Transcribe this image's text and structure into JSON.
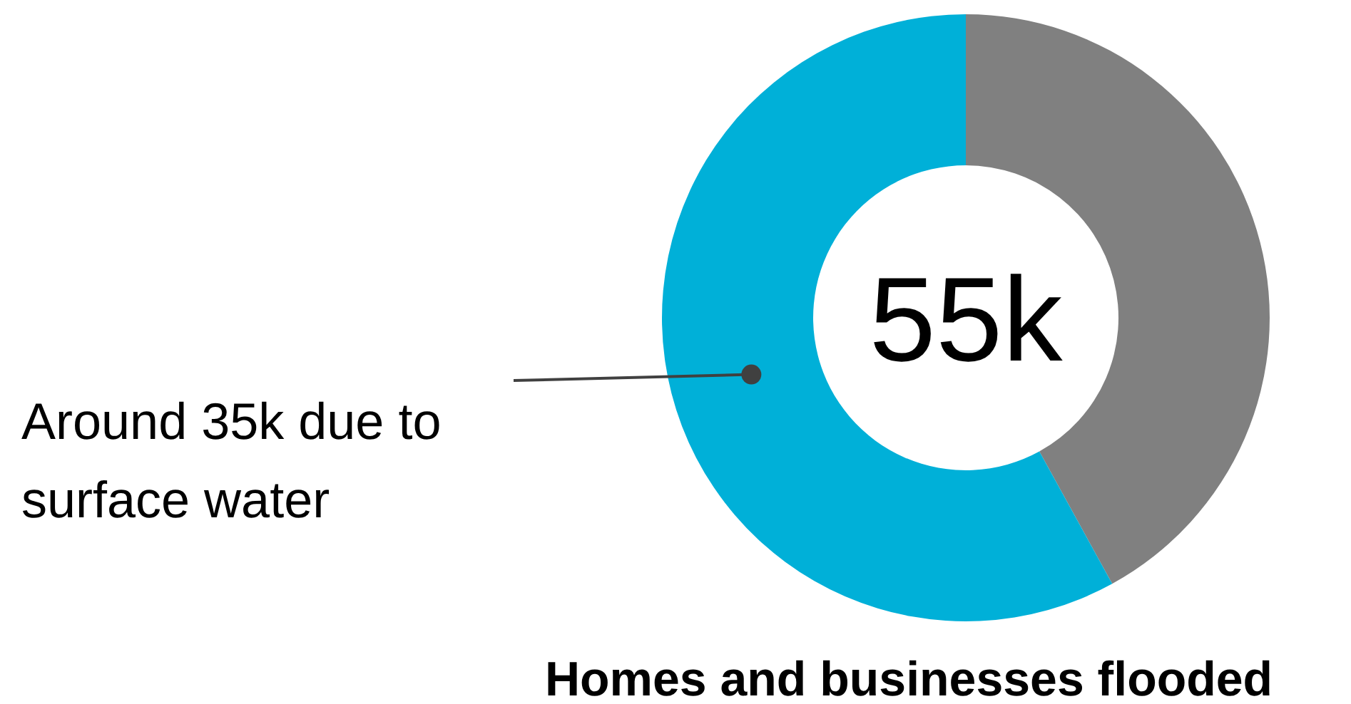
{
  "chart_data": {
    "type": "donut",
    "title": "Homes and businesses flooded",
    "categories": [
      null,
      null
    ],
    "values": [
      42,
      58
    ],
    "colors": [
      "#808080",
      "#00b0d8"
    ],
    "annotations": [
      "55k",
      "Around 35k due to surface water"
    ]
  }
}
